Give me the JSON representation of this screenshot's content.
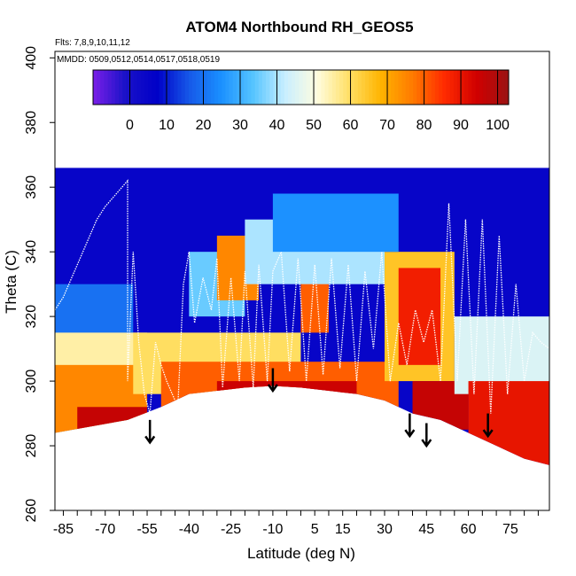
{
  "chart_data": {
    "type": "heatmap",
    "title": "ATOM4 Northbound RH_GEOS5",
    "xlabel": "Latitude (deg N)",
    "ylabel": "Theta (C)",
    "flights_note": "Flts: 7,8,9,10,11,12",
    "dates_note": "MMDD: 0509,0512,0514,0517,0518,0519",
    "xlim": [
      -88,
      89
    ],
    "ylim": [
      260,
      402
    ],
    "x_ticks": [
      -85,
      -70,
      -55,
      -40,
      -25,
      -10,
      5,
      15,
      30,
      45,
      60,
      75
    ],
    "x_minor_step": 5,
    "y_ticks": [
      260,
      280,
      300,
      320,
      340,
      360,
      380,
      400
    ],
    "colorbar": {
      "range": [
        -10,
        103
      ],
      "ticks": [
        0,
        10,
        20,
        30,
        40,
        50,
        60,
        70,
        80,
        90,
        100
      ],
      "colors": [
        "#7b1fe8",
        "#1a12c8",
        "#0000c8",
        "#1658e8",
        "#1a90ff",
        "#55c4ff",
        "#c8eeff",
        "#fffde0",
        "#ffe066",
        "#ffb400",
        "#ff7a00",
        "#ff2a00",
        "#d00000",
        "#9a1414"
      ]
    },
    "surface": [
      [
        -88,
        284
      ],
      [
        -62,
        288
      ],
      [
        -56,
        290
      ],
      [
        -50,
        292
      ],
      [
        -45,
        294
      ],
      [
        -40,
        296
      ],
      [
        -30,
        297
      ],
      [
        -20,
        298
      ],
      [
        -10,
        298.5
      ],
      [
        0,
        298
      ],
      [
        10,
        297
      ],
      [
        20,
        296
      ],
      [
        30,
        294
      ],
      [
        40,
        290
      ],
      [
        50,
        288
      ],
      [
        60,
        284
      ],
      [
        70,
        280
      ],
      [
        80,
        276
      ],
      [
        89,
        274
      ]
    ],
    "regions": [
      {
        "x": [
          -88,
          89
        ],
        "y": [
          260,
          366
        ],
        "rh": 5
      },
      {
        "x": [
          -88,
          -60
        ],
        "y": [
          262,
          330
        ],
        "rh": 20
      },
      {
        "x": [
          -88,
          -55
        ],
        "y": [
          262,
          315
        ],
        "rh": 55
      },
      {
        "x": [
          -88,
          -55
        ],
        "y": [
          262,
          305
        ],
        "rh": 75
      },
      {
        "x": [
          -80,
          -55
        ],
        "y": [
          262,
          292
        ],
        "rh": 96
      },
      {
        "x": [
          -60,
          0
        ],
        "y": [
          296,
          315
        ],
        "rh": 60
      },
      {
        "x": [
          -50,
          35
        ],
        "y": [
          292,
          306
        ],
        "rh": 80
      },
      {
        "x": [
          -30,
          20
        ],
        "y": [
          290,
          300
        ],
        "rh": 95
      },
      {
        "x": [
          -40,
          -20
        ],
        "y": [
          320,
          340
        ],
        "rh": 35
      },
      {
        "x": [
          -30,
          -15
        ],
        "y": [
          325,
          345
        ],
        "rh": 75
      },
      {
        "x": [
          0,
          10
        ],
        "y": [
          315,
          348
        ],
        "rh": 80
      },
      {
        "x": [
          -20,
          30
        ],
        "y": [
          330,
          350
        ],
        "rh": 40
      },
      {
        "x": [
          30,
          55
        ],
        "y": [
          300,
          340
        ],
        "rh": 65
      },
      {
        "x": [
          35,
          50
        ],
        "y": [
          305,
          335
        ],
        "rh": 88
      },
      {
        "x": [
          40,
          60
        ],
        "y": [
          285,
          300
        ],
        "rh": 96
      },
      {
        "x": [
          55,
          89
        ],
        "y": [
          296,
          320
        ],
        "rh": 45
      },
      {
        "x": [
          60,
          89
        ],
        "y": [
          270,
          300
        ],
        "rh": 90
      },
      {
        "x": [
          -10,
          35
        ],
        "y": [
          340,
          358
        ],
        "rh": 25
      }
    ],
    "arrows": [
      {
        "x": -54,
        "y_top": 288,
        "y_bottom": 281
      },
      {
        "x": -10,
        "y_top": 304,
        "y_bottom": 297
      },
      {
        "x": 39,
        "y_top": 290,
        "y_bottom": 283
      },
      {
        "x": 45,
        "y_top": 287,
        "y_bottom": 280
      },
      {
        "x": 67,
        "y_top": 290,
        "y_bottom": 283
      }
    ],
    "flight_track": [
      [
        -88,
        322
      ],
      [
        -85,
        326
      ],
      [
        -82,
        332
      ],
      [
        -79,
        338
      ],
      [
        -76,
        344
      ],
      [
        -73,
        350
      ],
      [
        -70,
        354
      ],
      [
        -67,
        357
      ],
      [
        -64,
        360
      ],
      [
        -62,
        362
      ],
      [
        -62,
        300
      ],
      [
        -60,
        340
      ],
      [
        -58,
        312
      ],
      [
        -56,
        296
      ],
      [
        -54,
        290
      ],
      [
        -52,
        312
      ],
      [
        -50,
        305
      ],
      [
        -48,
        300
      ],
      [
        -46,
        296
      ],
      [
        -44,
        292
      ],
      [
        -42,
        330
      ],
      [
        -40,
        340
      ],
      [
        -38,
        318
      ],
      [
        -35,
        332
      ],
      [
        -32,
        322
      ],
      [
        -30,
        338
      ],
      [
        -28,
        298
      ],
      [
        -25,
        332
      ],
      [
        -22,
        300
      ],
      [
        -20,
        334
      ],
      [
        -17,
        298
      ],
      [
        -15,
        336
      ],
      [
        -12,
        300
      ],
      [
        -10,
        334
      ],
      [
        -7,
        340
      ],
      [
        -4,
        303
      ],
      [
        -1,
        338
      ],
      [
        2,
        300
      ],
      [
        5,
        336
      ],
      [
        8,
        302
      ],
      [
        11,
        338
      ],
      [
        14,
        304
      ],
      [
        17,
        336
      ],
      [
        20,
        300
      ],
      [
        23,
        334
      ],
      [
        26,
        310
      ],
      [
        29,
        340
      ],
      [
        32,
        300
      ],
      [
        35,
        318
      ],
      [
        38,
        305
      ],
      [
        41,
        322
      ],
      [
        44,
        312
      ],
      [
        47,
        322
      ],
      [
        50,
        300
      ],
      [
        53,
        355
      ],
      [
        56,
        300
      ],
      [
        59,
        350
      ],
      [
        62,
        296
      ],
      [
        65,
        350
      ],
      [
        68,
        290
      ],
      [
        71,
        345
      ],
      [
        74,
        296
      ],
      [
        77,
        330
      ],
      [
        80,
        300
      ],
      [
        83,
        315
      ],
      [
        86,
        312
      ],
      [
        89,
        310
      ]
    ]
  }
}
